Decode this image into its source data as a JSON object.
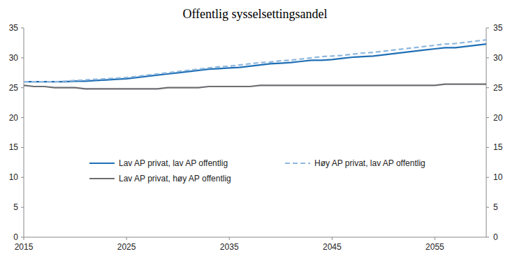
{
  "chart_data": {
    "type": "line",
    "title": "Offentlig sysselsettingsandel",
    "x": [
      2015,
      2016,
      2017,
      2018,
      2019,
      2020,
      2021,
      2022,
      2023,
      2024,
      2025,
      2026,
      2027,
      2028,
      2029,
      2030,
      2031,
      2032,
      2033,
      2034,
      2035,
      2036,
      2037,
      2038,
      2039,
      2040,
      2041,
      2042,
      2043,
      2044,
      2045,
      2046,
      2047,
      2048,
      2049,
      2050,
      2051,
      2052,
      2053,
      2054,
      2055,
      2056,
      2057,
      2058,
      2059,
      2060
    ],
    "series": [
      {
        "name": "Lav AP privat, lav AP offentlig",
        "color": "#1f6fb5",
        "line_style": "solid",
        "values": [
          26.0,
          26.0,
          26.0,
          26.0,
          26.0,
          26.1,
          26.1,
          26.2,
          26.3,
          26.4,
          26.5,
          26.7,
          26.9,
          27.1,
          27.3,
          27.5,
          27.7,
          27.9,
          28.1,
          28.2,
          28.3,
          28.4,
          28.6,
          28.8,
          29.0,
          29.1,
          29.2,
          29.4,
          29.6,
          29.6,
          29.7,
          29.9,
          30.1,
          30.2,
          30.3,
          30.5,
          30.7,
          30.9,
          31.1,
          31.3,
          31.5,
          31.7,
          31.7,
          31.9,
          32.1,
          32.3
        ]
      },
      {
        "name": "Høy AP privat, lav AP offentlig",
        "color": "#8fb8de",
        "line_style": "dashed",
        "values": [
          26.0,
          26.0,
          26.0,
          26.0,
          26.1,
          26.2,
          26.3,
          26.4,
          26.5,
          26.6,
          26.7,
          26.9,
          27.1,
          27.3,
          27.5,
          27.7,
          27.9,
          28.1,
          28.3,
          28.5,
          28.6,
          28.8,
          29.0,
          29.2,
          29.3,
          29.5,
          29.6,
          29.8,
          30.0,
          30.2,
          30.3,
          30.4,
          30.6,
          30.8,
          30.9,
          31.1,
          31.3,
          31.5,
          31.7,
          31.9,
          32.1,
          32.3,
          32.4,
          32.6,
          32.8,
          33.0
        ]
      },
      {
        "name": "Lav AP privat, høy AP offentlig",
        "color": "#6d6e71",
        "line_style": "solid",
        "values": [
          25.4,
          25.2,
          25.2,
          25.0,
          25.0,
          25.0,
          24.8,
          24.8,
          24.8,
          24.8,
          24.8,
          24.8,
          24.8,
          24.8,
          25.0,
          25.0,
          25.0,
          25.0,
          25.2,
          25.2,
          25.2,
          25.2,
          25.2,
          25.4,
          25.4,
          25.4,
          25.4,
          25.4,
          25.4,
          25.4,
          25.4,
          25.4,
          25.4,
          25.4,
          25.4,
          25.4,
          25.4,
          25.4,
          25.4,
          25.4,
          25.4,
          25.6,
          25.6,
          25.6,
          25.6,
          25.6
        ]
      }
    ],
    "xlim": [
      2015,
      2060
    ],
    "xticks": [
      2015,
      2025,
      2035,
      2045,
      2055
    ],
    "ylim": [
      0,
      35
    ],
    "yticks": [
      0,
      5,
      10,
      15,
      20,
      25,
      30,
      35
    ],
    "y2lim": [
      0,
      35
    ],
    "y2ticks": [
      0,
      5,
      10,
      15,
      20,
      25,
      30,
      35
    ],
    "grid": false,
    "legend": "center"
  }
}
